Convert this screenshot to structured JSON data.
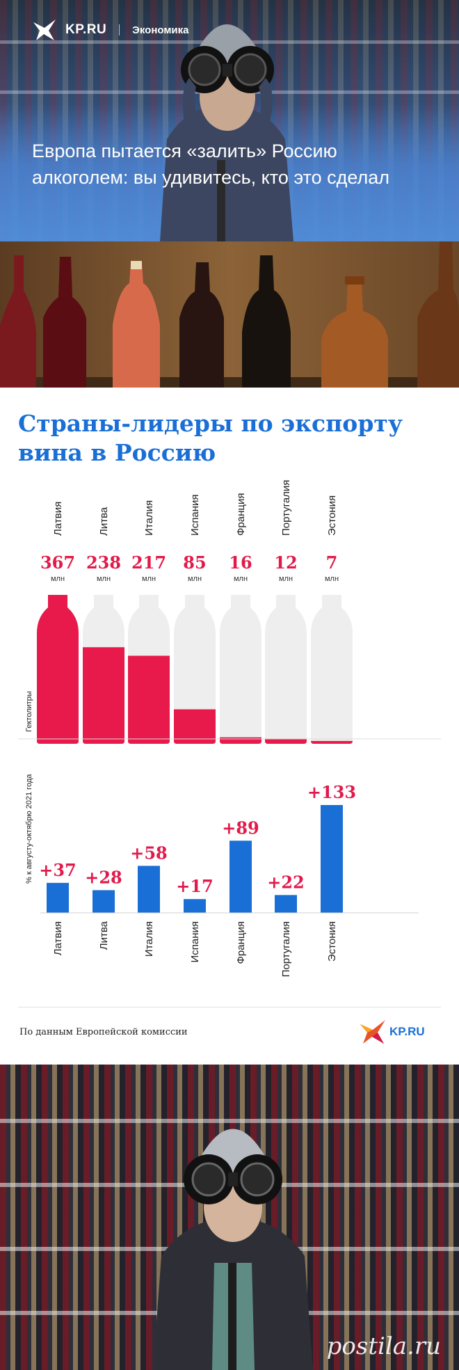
{
  "header": {
    "site": "KP.RU",
    "rubric": "Экономика",
    "headline": "Европа пытается «залить» Россию алкоголем: вы удивитесь, кто это сделал"
  },
  "chart_data": [
    {
      "type": "bar",
      "title": "Страны-лидеры по экспорту вина в Россию",
      "ylabel": "Гектолитры",
      "categories": [
        "Латвия",
        "Литва",
        "Италия",
        "Испания",
        "Франция",
        "Португалия",
        "Эстония"
      ],
      "series": [
        {
          "values": [
            367,
            238,
            217,
            85,
            16,
            12,
            7
          ]
        }
      ],
      "value_labels": [
        "367",
        "238",
        "217",
        "85",
        "16",
        "12",
        "7"
      ],
      "unit": "млн",
      "ylim": [
        0,
        367
      ],
      "fill_color": "#e8194b",
      "empty_color": "#eeeeee"
    },
    {
      "type": "bar",
      "ylabel": "% к августу-октябрю 2021 года",
      "categories": [
        "Латвия",
        "Литва",
        "Италия",
        "Испания",
        "Франция",
        "Португалия",
        "Эстония"
      ],
      "series": [
        {
          "values": [
            37,
            28,
            58,
            17,
            89,
            22,
            133
          ]
        }
      ],
      "value_labels": [
        "+37",
        "+28",
        "+58",
        "+17",
        "+89",
        "+22",
        "+133"
      ],
      "ylim": [
        0,
        133
      ],
      "bar_color": "#1a6fd6"
    }
  ],
  "footer": {
    "source": "По данным Европейской комиссии",
    "logo": "KP.RU"
  },
  "watermark": "postila.ru",
  "colors": {
    "accent_blue": "#1a6fd6",
    "accent_red": "#e21a4a"
  }
}
